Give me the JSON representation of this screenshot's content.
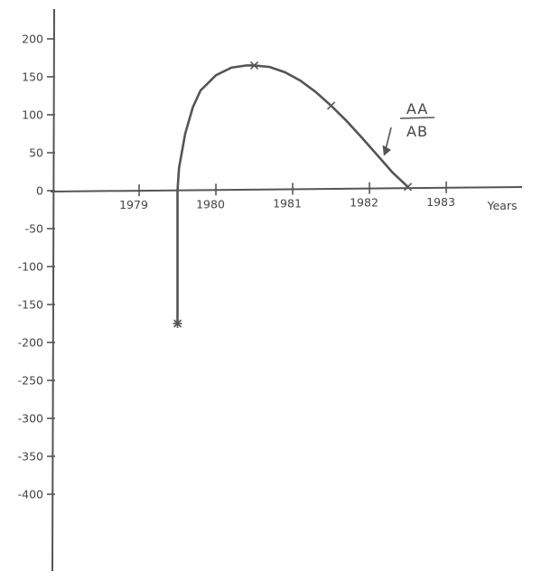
{
  "chart_data": {
    "type": "line",
    "title": "",
    "xlabel": "Years",
    "ylabel": "",
    "x_ticks": [
      1979,
      1980,
      1981,
      1982,
      1983
    ],
    "x_tick_labels": [
      "1979",
      "1980",
      "1981",
      "1982",
      "1983"
    ],
    "y_ticks": [
      200,
      150,
      100,
      50,
      0,
      -50,
      -100,
      -150,
      -200,
      -250,
      -300,
      -350,
      -400
    ],
    "y_tick_labels": [
      "200",
      "150",
      "100",
      "50",
      "0",
      "-50",
      "-100",
      "-150",
      "-200",
      "-250",
      "-300",
      "-350",
      "-400"
    ],
    "xlim": [
      1978.0,
      1983.6
    ],
    "ylim": [
      -400,
      200
    ],
    "grid": false,
    "series": [
      {
        "name": "",
        "curve_x": [
          1979.5,
          1979.5,
          1979.5,
          1979.52,
          1979.6,
          1979.7,
          1979.8,
          1980.0,
          1980.2,
          1980.4,
          1980.5,
          1980.7,
          1980.9,
          1981.1,
          1981.3,
          1981.5,
          1981.7,
          1981.9,
          1982.1,
          1982.3,
          1982.5
        ],
        "curve_y": [
          -175,
          -60,
          0,
          30,
          75,
          110,
          132,
          152,
          162,
          165,
          165,
          163,
          156,
          145,
          130,
          112,
          92,
          70,
          47,
          24,
          5
        ],
        "marker_x": [
          1979.5,
          1980.5,
          1981.5,
          1982.5
        ],
        "marker_y": [
          -175,
          165,
          112,
          5
        ],
        "marker_symbols": [
          "asterisk",
          "x",
          "x",
          "x"
        ]
      }
    ],
    "annotation": {
      "numerator": "AA",
      "denominator": "AB",
      "target": [
        1982.1,
        50
      ]
    }
  }
}
